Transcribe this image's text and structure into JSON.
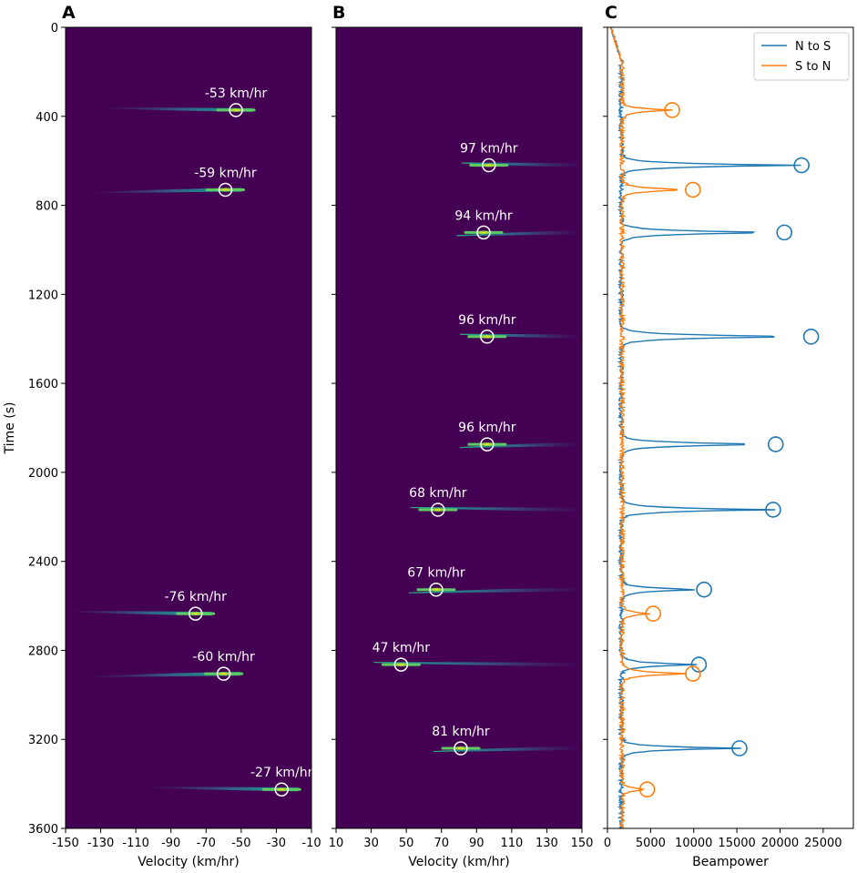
{
  "colors": {
    "background": "#440154",
    "mark_circle": "#ffffff",
    "n_to_s": "#1f77b4",
    "s_to_n": "#ff7f0e",
    "heat_low": "#31688e",
    "heat_mid": "#21918c",
    "heat_high": "#5ec962",
    "heat_peak": "#fde725"
  },
  "chart_data": [
    {
      "panel": "A",
      "type": "heatmap",
      "xlabel": "Velocity (km/hr)",
      "ylabel": "Time (s)",
      "xlim": [
        -150,
        -10
      ],
      "ylim": [
        3600,
        0
      ],
      "xticks": [
        "-150",
        "-130",
        "-110",
        "-90",
        "-70",
        "-50",
        "-30",
        "-10"
      ],
      "yticks": [
        "0",
        "400",
        "800",
        "1200",
        "1600",
        "2000",
        "2400",
        "2800",
        "3200",
        "3600"
      ],
      "detections": [
        {
          "time": 372,
          "velocity": -53,
          "label": "-53 km/hr"
        },
        {
          "time": 730,
          "velocity": -59,
          "label": "-59 km/hr"
        },
        {
          "time": 2635,
          "velocity": -76,
          "label": "-76 km/hr"
        },
        {
          "time": 2905,
          "velocity": -60,
          "label": "-60 km/hr"
        },
        {
          "time": 3425,
          "velocity": -27,
          "label": "-27 km/hr"
        }
      ]
    },
    {
      "panel": "B",
      "type": "heatmap",
      "xlabel": "Velocity (km/hr)",
      "xlim": [
        10,
        150
      ],
      "ylim": [
        3600,
        0
      ],
      "xticks": [
        "10",
        "30",
        "50",
        "70",
        "90",
        "110",
        "130",
        "150"
      ],
      "detections": [
        {
          "time": 620,
          "velocity": 97,
          "label": "97 km/hr"
        },
        {
          "time": 922,
          "velocity": 94,
          "label": "94 km/hr"
        },
        {
          "time": 1390,
          "velocity": 96,
          "label": "96 km/hr"
        },
        {
          "time": 1874,
          "velocity": 96,
          "label": "96 km/hr"
        },
        {
          "time": 2168,
          "velocity": 68,
          "label": "68 km/hr"
        },
        {
          "time": 2527,
          "velocity": 67,
          "label": "67 km/hr"
        },
        {
          "time": 2864,
          "velocity": 47,
          "label": "47 km/hr"
        },
        {
          "time": 3240,
          "velocity": 81,
          "label": "81 km/hr"
        }
      ]
    },
    {
      "panel": "C",
      "type": "line",
      "xlabel": "Beampower",
      "xlim": [
        0,
        28500
      ],
      "ylim": [
        3600,
        0
      ],
      "xticks": [
        "0",
        "5000",
        "10000",
        "15000",
        "20000",
        "25000"
      ],
      "legend_position": "top-right",
      "series": [
        {
          "name": "N to S",
          "baseline": 1600,
          "peaks": [
            {
              "time": 620,
              "value": 22500
            },
            {
              "time": 922,
              "value": 20500
            },
            {
              "time": 1390,
              "value": 23600
            },
            {
              "time": 1874,
              "value": 19500
            },
            {
              "time": 2168,
              "value": 19200
            },
            {
              "time": 2527,
              "value": 11200
            },
            {
              "time": 2864,
              "value": 10600
            },
            {
              "time": 3240,
              "value": 15300
            }
          ]
        },
        {
          "name": "S to N",
          "baseline": 1700,
          "peaks": [
            {
              "time": 372,
              "value": 7500
            },
            {
              "time": 730,
              "value": 9900
            },
            {
              "time": 2635,
              "value": 5300
            },
            {
              "time": 2905,
              "value": 9900
            },
            {
              "time": 3425,
              "value": 4600
            }
          ]
        }
      ]
    }
  ]
}
